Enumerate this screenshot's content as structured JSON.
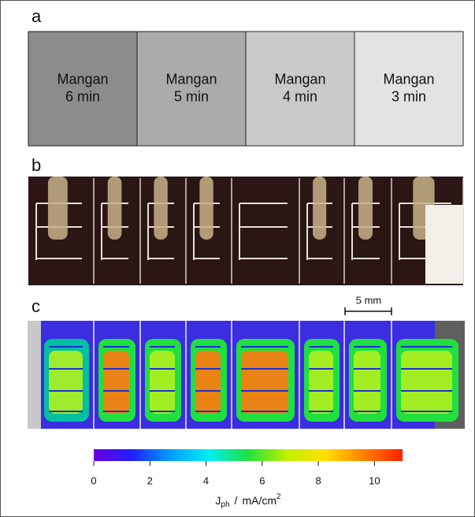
{
  "figure": {
    "panels": [
      {
        "label": "a",
        "boxes": [
          {
            "line1": "Mangan",
            "line2": "6 min",
            "color": "#8c8c8c"
          },
          {
            "line1": "Mangan",
            "line2": "5 min",
            "color": "#ababab"
          },
          {
            "line1": "Mangan",
            "line2": "4 min",
            "color": "#c9c9c9"
          },
          {
            "line1": "Mangan",
            "line2": "3 min",
            "color": "#e3e3e3"
          }
        ]
      },
      {
        "label": "b"
      },
      {
        "label": "c",
        "scale_bar": "5 mm"
      }
    ],
    "colorbar": {
      "lim": [
        0,
        11
      ],
      "ticks": [
        0,
        2,
        4,
        6,
        8,
        10
      ],
      "colors": [
        "#6a00e0",
        "#2020ff",
        "#00a0ff",
        "#00f0f0",
        "#20e040",
        "#c0f000",
        "#ffe000",
        "#ff8000",
        "#ff2000"
      ],
      "label": {
        "symbol": "J",
        "subscript": "ph",
        "separator": "/",
        "unit": "mA/cm",
        "superscript": "2"
      }
    }
  }
}
